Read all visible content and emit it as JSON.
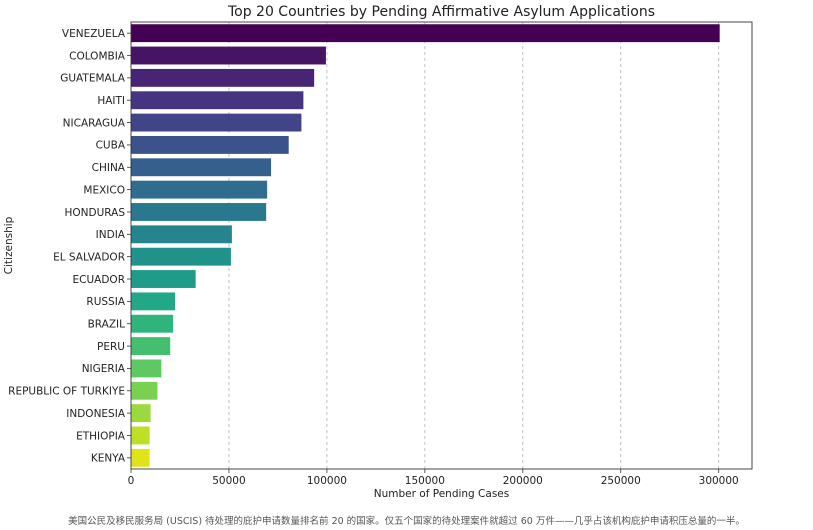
{
  "caption": "美国公民及移民服务局 (USCIS) 待处理的庇护申请数量排名前 20 的国家。仅五个国家的待处理案件就超过 60 万件——几乎占该机构庇护申请积压总量的一半。",
  "chart_data": {
    "type": "bar",
    "orientation": "horizontal",
    "title": "Top 20 Countries by Pending Affirmative Asylum Applications",
    "xlabel": "Number of Pending Cases",
    "ylabel": "Citizenship",
    "xlim": [
      0,
      317000
    ],
    "xticks": [
      0,
      50000,
      100000,
      150000,
      200000,
      250000,
      300000
    ],
    "grid": "x-dashed",
    "colormap": "viridis",
    "categories": [
      "VENEZUELA",
      "COLOMBIA",
      "GUATEMALA",
      "HAITI",
      "NICARAGUA",
      "CUBA",
      "CHINA",
      "MEXICO",
      "HONDURAS",
      "INDIA",
      "EL SALVADOR",
      "ECUADOR",
      "RUSSIA",
      "BRAZIL",
      "PERU",
      "NIGERIA",
      "REPUBLIC OF TURKIYE",
      "INDONESIA",
      "ETHIOPIA",
      "KENYA"
    ],
    "values": [
      300500,
      99500,
      93500,
      88000,
      87000,
      80500,
      71500,
      69500,
      69000,
      51500,
      51000,
      33000,
      22500,
      21500,
      20000,
      15500,
      13500,
      10000,
      9500,
      9500
    ],
    "colors": [
      "#440154",
      "#471365",
      "#482475",
      "#463480",
      "#414487",
      "#3b528b",
      "#355f8d",
      "#2f6c8e",
      "#2a788e",
      "#25848e",
      "#21918c",
      "#1e9c89",
      "#22a884",
      "#2fb47c",
      "#44bf70",
      "#5ec962",
      "#7ad151",
      "#9bd93c",
      "#bddf26",
      "#dfe318"
    ]
  }
}
